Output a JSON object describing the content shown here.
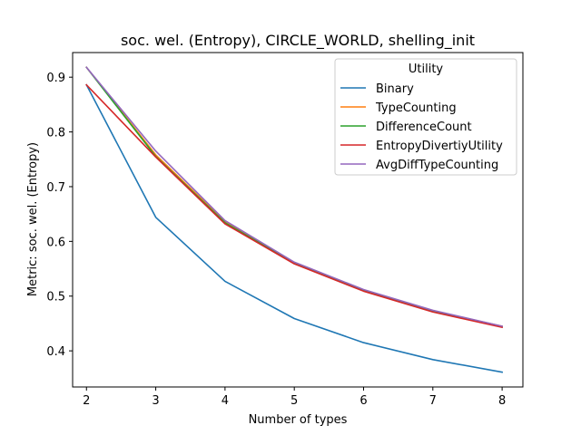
{
  "chart_data": {
    "type": "line",
    "title": "soc. wel. (Entropy), CIRCLE_WORLD, shelling_init",
    "xlabel": "Number of types",
    "ylabel": "Metric: soc. wel. (Entropy)",
    "x": [
      2,
      3,
      4,
      5,
      6,
      7,
      8
    ],
    "xlim": [
      1.8,
      8.3
    ],
    "ylim": [
      0.334,
      0.945
    ],
    "xticks": [
      "2",
      "3",
      "4",
      "5",
      "6",
      "7",
      "8"
    ],
    "yticks": [
      "0.4",
      "0.5",
      "0.6",
      "0.7",
      "0.8",
      "0.9"
    ],
    "grid": false,
    "legend": {
      "title": "Utility",
      "placement": "top-right"
    },
    "series": [
      {
        "name": "Binary",
        "color": "#1f77b4",
        "values": [
          0.886,
          0.644,
          0.527,
          0.459,
          0.415,
          0.384,
          0.361
        ]
      },
      {
        "name": "TypeCounting",
        "color": "#ff7f0e",
        "values": [
          0.918,
          0.758,
          0.636,
          0.561,
          0.511,
          0.473,
          0.445
        ]
      },
      {
        "name": "DifferenceCount",
        "color": "#2ca02c",
        "values": [
          0.918,
          0.755,
          0.634,
          0.56,
          0.51,
          0.472,
          0.444
        ]
      },
      {
        "name": "EntropyDivertiyUtility",
        "color": "#d62728",
        "values": [
          0.886,
          0.754,
          0.632,
          0.559,
          0.509,
          0.471,
          0.443
        ]
      },
      {
        "name": "AvgDiffTypeCounting",
        "color": "#9467bd",
        "values": [
          0.918,
          0.765,
          0.638,
          0.562,
          0.512,
          0.474,
          0.445
        ]
      }
    ]
  }
}
